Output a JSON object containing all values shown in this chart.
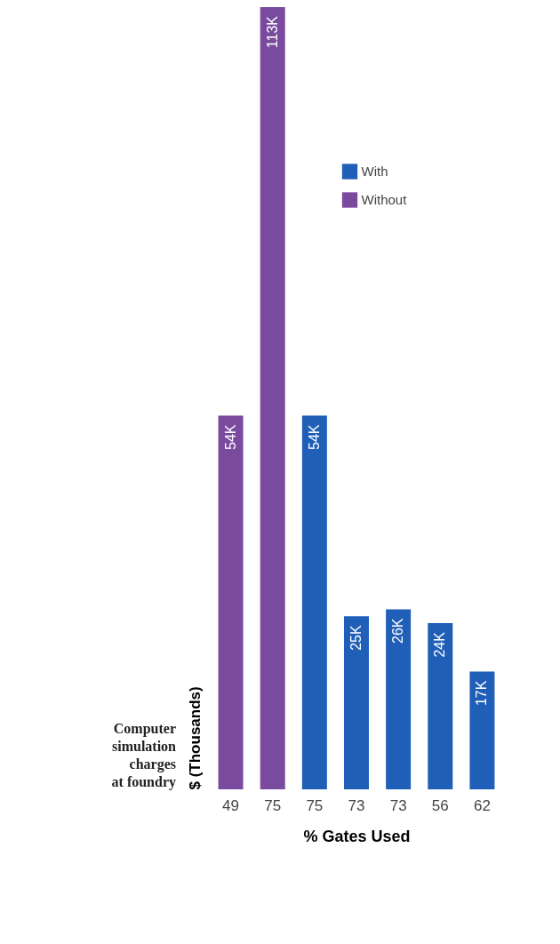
{
  "chart_data": {
    "type": "bar",
    "xlabel": "% Gates Used",
    "ylabel": "$ (Thousands)",
    "categories": [
      "49",
      "75",
      "75",
      "73",
      "73",
      "56",
      "62"
    ],
    "series": [
      {
        "name": "With",
        "color": "#1f5fb8",
        "values": [
          null,
          null,
          54,
          25,
          26,
          24,
          17
        ],
        "value_labels": [
          null,
          null,
          "54K",
          "25K",
          "26K",
          "24K",
          "17K"
        ]
      },
      {
        "name": "Without",
        "color": "#7a4a9e",
        "values": [
          54,
          113,
          null,
          null,
          null,
          null,
          null
        ],
        "value_labels": [
          "54K",
          "113K",
          null,
          null,
          null,
          null,
          null
        ]
      }
    ],
    "annotations": [
      "Computer\nsimulation\ncharges\nat foundry"
    ],
    "legend": "top right",
    "tick_labels": "x",
    "grid": false
  }
}
